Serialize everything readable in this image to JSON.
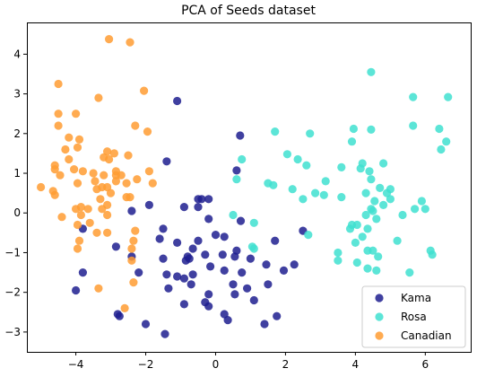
{
  "chart_data": {
    "type": "scatter",
    "title": "PCA of Seeds dataset",
    "xlabel": "",
    "ylabel": "",
    "xlim": [
      -5.4,
      7.3
    ],
    "ylim": [
      -3.5,
      4.8
    ],
    "xticks": [
      -4,
      -2,
      0,
      2,
      4,
      6
    ],
    "yticks": [
      -3,
      -2,
      -1,
      0,
      1,
      2,
      3,
      4
    ],
    "grid": false,
    "legend_position": "lower-right",
    "series": [
      {
        "name": "Kama",
        "color": "#1f1f8f",
        "points": [
          [
            -1.1,
            2.82
          ],
          [
            0.7,
            1.95
          ],
          [
            0.6,
            1.07
          ],
          [
            -1.4,
            1.3
          ],
          [
            -0.9,
            0.15
          ],
          [
            -0.5,
            0.15
          ],
          [
            -0.4,
            0.35
          ],
          [
            -0.5,
            0.35
          ],
          [
            -0.2,
            0.35
          ],
          [
            -2.4,
            0.05
          ],
          [
            -1.9,
            0.2
          ],
          [
            0.72,
            -0.2
          ],
          [
            -0.2,
            -0.15
          ],
          [
            -1.5,
            -0.4
          ],
          [
            -3.8,
            -0.4
          ],
          [
            -2.85,
            -0.85
          ],
          [
            -1.6,
            -0.65
          ],
          [
            0.0,
            -0.55
          ],
          [
            0.25,
            -0.6
          ],
          [
            -1.1,
            -0.75
          ],
          [
            -0.5,
            -0.7
          ],
          [
            -0.65,
            -0.9
          ],
          [
            0.6,
            -0.95
          ],
          [
            1.7,
            -0.7
          ],
          [
            2.5,
            -0.45
          ],
          [
            -2.4,
            -1.1
          ],
          [
            -1.5,
            -1.15
          ],
          [
            -0.8,
            -1.1
          ],
          [
            -0.75,
            -1.15
          ],
          [
            -0.85,
            -1.2
          ],
          [
            -0.3,
            -1.05
          ],
          [
            0.2,
            -1.05
          ],
          [
            0.55,
            -1.1
          ],
          [
            1.0,
            -1.15
          ],
          [
            -3.8,
            -1.5
          ],
          [
            -2.2,
            -1.5
          ],
          [
            -1.4,
            -1.55
          ],
          [
            -1.1,
            -1.6
          ],
          [
            -0.9,
            -1.65
          ],
          [
            -0.65,
            -1.55
          ],
          [
            -0.15,
            -1.35
          ],
          [
            0.25,
            -1.45
          ],
          [
            0.75,
            -1.5
          ],
          [
            1.45,
            -1.3
          ],
          [
            1.95,
            -1.45
          ],
          [
            2.25,
            -1.3
          ],
          [
            -4.0,
            -1.95
          ],
          [
            -1.35,
            -1.9
          ],
          [
            -0.7,
            -1.8
          ],
          [
            0.5,
            -1.8
          ],
          [
            0.9,
            -1.9
          ],
          [
            1.5,
            -1.8
          ],
          [
            -0.2,
            -2.05
          ],
          [
            -0.3,
            -2.25
          ],
          [
            0.55,
            -2.05
          ],
          [
            1.1,
            -2.2
          ],
          [
            -0.9,
            -2.3
          ],
          [
            -0.2,
            -2.35
          ],
          [
            -2.8,
            -2.55
          ],
          [
            -2.75,
            -2.6
          ],
          [
            0.25,
            -2.55
          ],
          [
            1.75,
            -2.6
          ],
          [
            0.35,
            -2.7
          ],
          [
            1.4,
            -2.8
          ],
          [
            -2.0,
            -2.8
          ],
          [
            -1.45,
            -3.05
          ]
        ]
      },
      {
        "name": "Rosa",
        "color": "#40e0d0",
        "points": [
          [
            4.45,
            3.55
          ],
          [
            5.65,
            2.92
          ],
          [
            6.65,
            2.92
          ],
          [
            5.65,
            2.2
          ],
          [
            3.95,
            2.12
          ],
          [
            4.45,
            2.1
          ],
          [
            6.4,
            2.12
          ],
          [
            2.7,
            2.0
          ],
          [
            1.7,
            2.05
          ],
          [
            3.9,
            1.8
          ],
          [
            6.6,
            1.8
          ],
          [
            2.05,
            1.48
          ],
          [
            0.75,
            1.35
          ],
          [
            2.35,
            1.35
          ],
          [
            2.6,
            1.2
          ],
          [
            4.2,
            1.25
          ],
          [
            4.8,
            1.25
          ],
          [
            4.15,
            1.12
          ],
          [
            6.45,
            1.6
          ],
          [
            3.6,
            1.15
          ],
          [
            4.4,
            1.05
          ],
          [
            0.6,
            0.85
          ],
          [
            1.5,
            0.75
          ],
          [
            1.65,
            0.7
          ],
          [
            3.15,
            0.8
          ],
          [
            2.2,
            0.6
          ],
          [
            4.45,
            0.85
          ],
          [
            4.7,
            0.63
          ],
          [
            5.0,
            0.6
          ],
          [
            2.85,
            0.5
          ],
          [
            3.1,
            0.45
          ],
          [
            4.3,
            0.5
          ],
          [
            4.9,
            0.5
          ],
          [
            3.6,
            0.4
          ],
          [
            2.5,
            0.35
          ],
          [
            4.55,
            0.3
          ],
          [
            4.8,
            0.2
          ],
          [
            5.0,
            0.35
          ],
          [
            5.9,
            0.3
          ],
          [
            4.45,
            0.1
          ],
          [
            5.7,
            0.1
          ],
          [
            6.0,
            0.1
          ],
          [
            5.35,
            -0.05
          ],
          [
            4.5,
            0.05
          ],
          [
            4.3,
            -0.05
          ],
          [
            4.6,
            -0.15
          ],
          [
            0.5,
            -0.05
          ],
          [
            1.1,
            -0.25
          ],
          [
            3.9,
            -0.3
          ],
          [
            4.05,
            -0.3
          ],
          [
            3.85,
            -0.4
          ],
          [
            2.65,
            -0.55
          ],
          [
            4.2,
            -0.6
          ],
          [
            4.35,
            -0.4
          ],
          [
            5.2,
            -0.7
          ],
          [
            4.0,
            -0.75
          ],
          [
            1.05,
            -0.85
          ],
          [
            1.1,
            -0.9
          ],
          [
            4.35,
            -0.95
          ],
          [
            4.5,
            -0.95
          ],
          [
            3.5,
            -1.0
          ],
          [
            4.65,
            -1.1
          ],
          [
            6.15,
            -0.95
          ],
          [
            6.2,
            -1.05
          ],
          [
            3.5,
            -1.2
          ],
          [
            4.05,
            -1.25
          ],
          [
            4.35,
            -1.4
          ],
          [
            4.6,
            -1.45
          ],
          [
            5.55,
            -1.5
          ]
        ]
      },
      {
        "name": "Canadian",
        "color": "#ff9c33",
        "points": [
          [
            -3.05,
            4.38
          ],
          [
            -2.45,
            4.3
          ],
          [
            -4.5,
            3.25
          ],
          [
            -2.05,
            3.08
          ],
          [
            -3.35,
            2.9
          ],
          [
            -4.5,
            2.5
          ],
          [
            -4.0,
            2.5
          ],
          [
            -4.5,
            2.2
          ],
          [
            -2.3,
            2.2
          ],
          [
            -4.2,
            1.9
          ],
          [
            -1.95,
            2.05
          ],
          [
            -3.9,
            1.85
          ],
          [
            -4.3,
            1.6
          ],
          [
            -3.95,
            1.65
          ],
          [
            -3.1,
            1.55
          ],
          [
            -2.9,
            1.5
          ],
          [
            -3.05,
            1.35
          ],
          [
            -3.2,
            1.4
          ],
          [
            -2.5,
            1.45
          ],
          [
            -4.2,
            1.35
          ],
          [
            -4.6,
            1.2
          ],
          [
            -4.6,
            1.1
          ],
          [
            -4.05,
            1.1
          ],
          [
            -3.8,
            1.05
          ],
          [
            -2.85,
            1.05
          ],
          [
            -4.45,
            0.95
          ],
          [
            -3.5,
            1.0
          ],
          [
            -3.2,
            0.95
          ],
          [
            -2.85,
            0.95
          ],
          [
            -2.7,
            0.95
          ],
          [
            -1.9,
            1.05
          ],
          [
            -2.25,
            0.85
          ],
          [
            -3.45,
            0.8
          ],
          [
            -2.85,
            0.8
          ],
          [
            -2.55,
            0.75
          ],
          [
            -3.95,
            0.75
          ],
          [
            -3.1,
            0.65
          ],
          [
            -5.0,
            0.65
          ],
          [
            -1.8,
            0.75
          ],
          [
            -4.65,
            0.55
          ],
          [
            -3.4,
            0.6
          ],
          [
            -3.25,
            0.65
          ],
          [
            -3.0,
            0.5
          ],
          [
            -4.6,
            0.45
          ],
          [
            -3.3,
            0.35
          ],
          [
            -2.55,
            0.4
          ],
          [
            -2.45,
            0.4
          ],
          [
            -3.85,
            0.15
          ],
          [
            -3.65,
            0.1
          ],
          [
            -4.0,
            0.1
          ],
          [
            -3.1,
            0.2
          ],
          [
            -3.25,
            0.1
          ],
          [
            -4.4,
            -0.1
          ],
          [
            -3.85,
            -0.05
          ],
          [
            -3.1,
            -0.05
          ],
          [
            -3.95,
            -0.3
          ],
          [
            -3.6,
            -0.25
          ],
          [
            -3.4,
            -0.5
          ],
          [
            -3.1,
            -0.5
          ],
          [
            -2.3,
            -0.45
          ],
          [
            -2.35,
            -0.7
          ],
          [
            -3.9,
            -0.7
          ],
          [
            -3.95,
            -0.9
          ],
          [
            -2.4,
            -0.9
          ],
          [
            -2.4,
            -1.2
          ],
          [
            -2.35,
            -1.75
          ],
          [
            -3.35,
            -1.9
          ],
          [
            -2.6,
            -2.4
          ]
        ]
      }
    ]
  }
}
